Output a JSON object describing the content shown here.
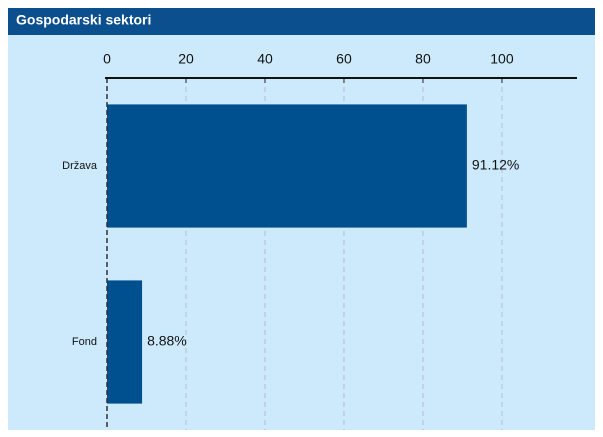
{
  "chart_data": {
    "type": "bar",
    "orientation": "horizontal",
    "title": "Gospodarski sektori",
    "categories": [
      "Država",
      "Fond"
    ],
    "values": [
      91.12,
      8.88
    ],
    "value_labels": [
      "91.12%",
      "8.88%"
    ],
    "color": "#00508f",
    "xlim": [
      0,
      119
    ],
    "xticks": [
      0,
      20,
      40,
      60,
      80,
      100
    ],
    "grid": true
  }
}
